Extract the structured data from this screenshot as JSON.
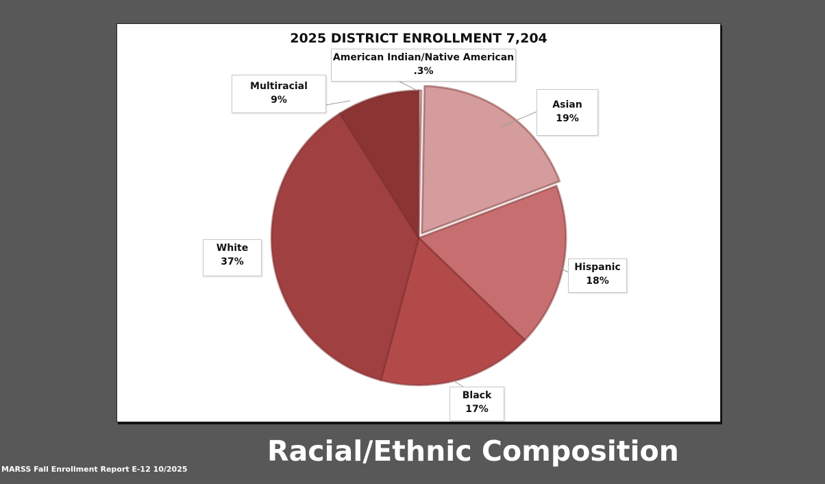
{
  "slide_title": "Racial/Ethnic Composition",
  "footer_source": "MARSS Fall Enrollment Report E-12 10/2025",
  "chart_data": {
    "type": "pie",
    "title": "2025 DISTRICT ENROLLMENT  7,204",
    "slices": [
      {
        "category": "American Indian/Native American",
        "label": ".3%",
        "value": 0.3,
        "color": "#e8c4c4"
      },
      {
        "category": "Asian",
        "label": "19%",
        "value": 19,
        "color": "#d49c9c"
      },
      {
        "category": "Hispanic",
        "label": "18%",
        "value": 18,
        "color": "#c66e70"
      },
      {
        "category": "Black",
        "label": "17%",
        "value": 17,
        "color": "#b34a4a"
      },
      {
        "category": "White",
        "label": "37%",
        "value": 37,
        "color": "#a04040"
      },
      {
        "category": "Multiracial",
        "label": "9%",
        "value": 9,
        "color": "#8a3434"
      }
    ]
  }
}
